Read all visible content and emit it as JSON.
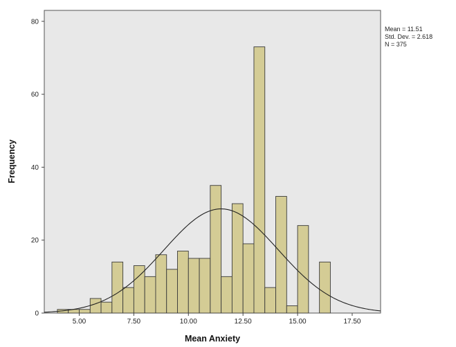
{
  "chart_data": {
    "type": "bar",
    "title": "",
    "xlabel": "Mean Anxiety",
    "ylabel": "Frequency",
    "xlim": [
      3.4,
      18.8
    ],
    "ylim": [
      0,
      83
    ],
    "x_ticks": [
      5,
      7.5,
      10,
      12.5,
      15,
      17.5
    ],
    "x_tick_labels": [
      "5.00",
      "7.50",
      "10.00",
      "12.50",
      "15.00",
      "17.50"
    ],
    "y_ticks": [
      0,
      20,
      40,
      60,
      80
    ],
    "y_tick_labels": [
      "0",
      "20",
      "40",
      "60",
      "80"
    ],
    "bin_width": 0.5,
    "bins_start": [
      4.0,
      4.5,
      5.0,
      5.5,
      6.0,
      6.5,
      7.0,
      7.5,
      8.0,
      8.5,
      9.0,
      9.5,
      10.0,
      10.5,
      11.0,
      11.5,
      12.0,
      12.5,
      13.0,
      13.5,
      14.0,
      14.5,
      15.0,
      16.0
    ],
    "values": [
      1,
      1,
      1,
      4,
      3,
      14,
      7,
      13,
      10,
      16,
      12,
      17,
      15,
      15,
      35,
      10,
      30,
      19,
      73,
      7,
      32,
      2,
      24,
      14
    ],
    "normal_curve": {
      "mean": 11.5,
      "sd": 2.618,
      "n": 375
    },
    "bar_color": "#d4cc95",
    "bar_edge_color": "#3a3a3a",
    "plot_background": "#e8e8e8",
    "stats_lines": [
      "Mean = 11.51",
      "Std. Dev. = 2.618",
      "N = 375"
    ],
    "grid": false
  }
}
